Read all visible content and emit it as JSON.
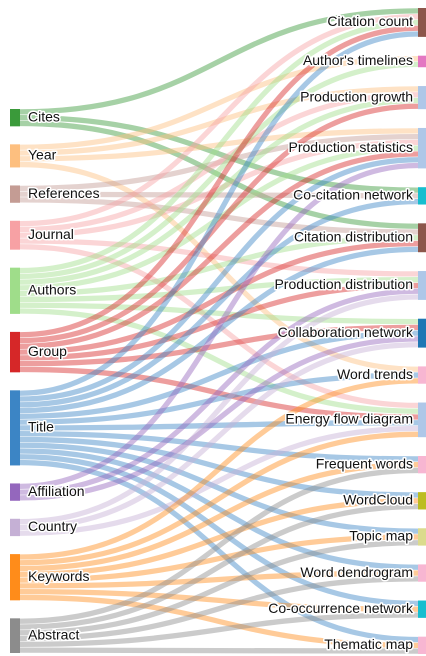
{
  "chart_data": {
    "type": "sankey",
    "sources": [
      {
        "name": "Cites",
        "color": "#3a9a3a"
      },
      {
        "name": "Year",
        "color": "#fdbf7f"
      },
      {
        "name": "References",
        "color": "#c49c94"
      },
      {
        "name": "Journal",
        "color": "#f7a1a4"
      },
      {
        "name": "Authors",
        "color": "#9fdd8a"
      },
      {
        "name": "Group",
        "color": "#d62728"
      },
      {
        "name": "Title",
        "color": "#3c85c5"
      },
      {
        "name": "Affiliation",
        "color": "#9467bd"
      },
      {
        "name": "Country",
        "color": "#c5b0d5"
      },
      {
        "name": "Keywords",
        "color": "#ff8c1a"
      },
      {
        "name": "Abstract",
        "color": "#8c8c8c"
      }
    ],
    "targets": [
      {
        "name": "Citation count",
        "color": "#8c564b"
      },
      {
        "name": "Author's timelines",
        "color": "#e377c2"
      },
      {
        "name": "Production growth",
        "color": "#aec7e8"
      },
      {
        "name": "Production statistics",
        "color": "#aec7e8"
      },
      {
        "name": "Co-citation network",
        "color": "#17becf"
      },
      {
        "name": "Citation distribution",
        "color": "#8c564b"
      },
      {
        "name": "Production distribution",
        "color": "#aec7e8"
      },
      {
        "name": "Collaboration network",
        "color": "#1f77b4"
      },
      {
        "name": "Word trends",
        "color": "#f7b6d2"
      },
      {
        "name": "Energy flow diagram",
        "color": "#aec7e8"
      },
      {
        "name": "Frequent words",
        "color": "#f7b6d2"
      },
      {
        "name": "WordCloud",
        "color": "#bcbd22"
      },
      {
        "name": "Topic map",
        "color": "#dbdb8d"
      },
      {
        "name": "Word dendrogram",
        "color": "#f7b6d2"
      },
      {
        "name": "Co-occurrence network",
        "color": "#17becf"
      },
      {
        "name": "Thematic map",
        "color": "#f7b6d2"
      }
    ],
    "links": [
      {
        "source": "Cites",
        "target": "Citation count",
        "value": 1
      },
      {
        "source": "Cites",
        "target": "Co-citation network",
        "value": 1
      },
      {
        "source": "Cites",
        "target": "Citation distribution",
        "value": 1
      },
      {
        "source": "Year",
        "target": "Author's timelines",
        "value": 1
      },
      {
        "source": "Year",
        "target": "Production growth",
        "value": 1
      },
      {
        "source": "Year",
        "target": "Production statistics",
        "value": 1
      },
      {
        "source": "Year",
        "target": "Word trends",
        "value": 1
      },
      {
        "source": "References",
        "target": "Production statistics",
        "value": 1
      },
      {
        "source": "References",
        "target": "Co-citation network",
        "value": 1
      },
      {
        "source": "References",
        "target": "Citation distribution",
        "value": 1
      },
      {
        "source": "Journal",
        "target": "Citation count",
        "value": 1
      },
      {
        "source": "Journal",
        "target": "Production growth",
        "value": 1
      },
      {
        "source": "Journal",
        "target": "Production statistics",
        "value": 1
      },
      {
        "source": "Journal",
        "target": "Production distribution",
        "value": 1
      },
      {
        "source": "Journal",
        "target": "Energy flow diagram",
        "value": 1
      },
      {
        "source": "Authors",
        "target": "Citation count",
        "value": 1
      },
      {
        "source": "Authors",
        "target": "Author's timelines",
        "value": 1
      },
      {
        "source": "Authors",
        "target": "Production growth",
        "value": 1
      },
      {
        "source": "Authors",
        "target": "Production statistics",
        "value": 1
      },
      {
        "source": "Authors",
        "target": "Citation distribution",
        "value": 1
      },
      {
        "source": "Authors",
        "target": "Production distribution",
        "value": 1
      },
      {
        "source": "Authors",
        "target": "Collaboration network",
        "value": 1
      },
      {
        "source": "Authors",
        "target": "Energy flow diagram",
        "value": 1
      },
      {
        "source": "Group",
        "target": "Citation count",
        "value": 1
      },
      {
        "source": "Group",
        "target": "Production growth",
        "value": 1
      },
      {
        "source": "Group",
        "target": "Production statistics",
        "value": 1
      },
      {
        "source": "Group",
        "target": "Citation distribution",
        "value": 1
      },
      {
        "source": "Group",
        "target": "Production distribution",
        "value": 1
      },
      {
        "source": "Group",
        "target": "Collaboration network",
        "value": 1
      },
      {
        "source": "Group",
        "target": "Energy flow diagram",
        "value": 1
      },
      {
        "source": "Title",
        "target": "Citation count",
        "value": 1
      },
      {
        "source": "Title",
        "target": "Production statistics",
        "value": 1
      },
      {
        "source": "Title",
        "target": "Co-citation network",
        "value": 1
      },
      {
        "source": "Title",
        "target": "Citation distribution",
        "value": 1
      },
      {
        "source": "Title",
        "target": "Collaboration network",
        "value": 1
      },
      {
        "source": "Title",
        "target": "Word trends",
        "value": 1
      },
      {
        "source": "Title",
        "target": "Energy flow diagram",
        "value": 1
      },
      {
        "source": "Title",
        "target": "Frequent words",
        "value": 1
      },
      {
        "source": "Title",
        "target": "WordCloud",
        "value": 1
      },
      {
        "source": "Title",
        "target": "Topic map",
        "value": 1
      },
      {
        "source": "Title",
        "target": "Word dendrogram",
        "value": 1
      },
      {
        "source": "Title",
        "target": "Co-occurrence network",
        "value": 1
      },
      {
        "source": "Title",
        "target": "Thematic map",
        "value": 1
      },
      {
        "source": "Affiliation",
        "target": "Production statistics",
        "value": 1
      },
      {
        "source": "Affiliation",
        "target": "Production distribution",
        "value": 1
      },
      {
        "source": "Affiliation",
        "target": "Collaboration network",
        "value": 1
      },
      {
        "source": "Country",
        "target": "Production distribution",
        "value": 1
      },
      {
        "source": "Country",
        "target": "Collaboration network",
        "value": 1
      },
      {
        "source": "Country",
        "target": "Energy flow diagram",
        "value": 1
      },
      {
        "source": "Keywords",
        "target": "Word trends",
        "value": 1
      },
      {
        "source": "Keywords",
        "target": "Energy flow diagram",
        "value": 1
      },
      {
        "source": "Keywords",
        "target": "Frequent words",
        "value": 1
      },
      {
        "source": "Keywords",
        "target": "WordCloud",
        "value": 1
      },
      {
        "source": "Keywords",
        "target": "Topic map",
        "value": 1
      },
      {
        "source": "Keywords",
        "target": "Word dendrogram",
        "value": 1
      },
      {
        "source": "Keywords",
        "target": "Co-occurrence network",
        "value": 1
      },
      {
        "source": "Keywords",
        "target": "Thematic map",
        "value": 1
      },
      {
        "source": "Abstract",
        "target": "Frequent words",
        "value": 1
      },
      {
        "source": "Abstract",
        "target": "WordCloud",
        "value": 1
      },
      {
        "source": "Abstract",
        "target": "Topic map",
        "value": 1
      },
      {
        "source": "Abstract",
        "target": "Word dendrogram",
        "value": 1
      },
      {
        "source": "Abstract",
        "target": "Co-occurrence network",
        "value": 1
      },
      {
        "source": "Abstract",
        "target": "Thematic map",
        "value": 1
      }
    ]
  }
}
